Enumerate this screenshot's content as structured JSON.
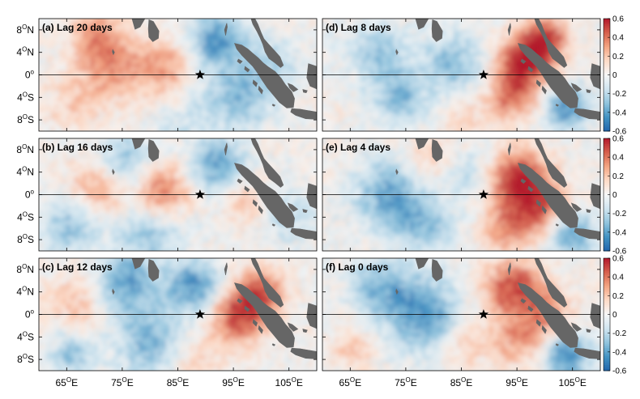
{
  "chart_data": {
    "type": "heatmap",
    "x_tick_labels": [
      {
        "deg": "65",
        "sup": "O",
        "hemi": "E",
        "value": 65
      },
      {
        "deg": "75",
        "sup": "O",
        "hemi": "E",
        "value": 75
      },
      {
        "deg": "85",
        "sup": "O",
        "hemi": "E",
        "value": 85
      },
      {
        "deg": "95",
        "sup": "O",
        "hemi": "E",
        "value": 95
      },
      {
        "deg": "105",
        "sup": "O",
        "hemi": "E",
        "value": 105
      }
    ],
    "y_tick_labels": [
      {
        "deg": "8",
        "sup": "O",
        "hemi": "N",
        "value": 8
      },
      {
        "deg": "4",
        "sup": "O",
        "hemi": "N",
        "value": 4
      },
      {
        "deg": "0",
        "sup": "o",
        "hemi": "",
        "value": 0
      },
      {
        "deg": "4",
        "sup": "O",
        "hemi": "S",
        "value": -4
      },
      {
        "deg": "8",
        "sup": "O",
        "hemi": "S",
        "value": -8
      }
    ],
    "xlim": [
      60,
      110
    ],
    "ylim": [
      -10,
      10
    ],
    "colorbar": {
      "range": [
        -0.6,
        0.6
      ],
      "ticks": [
        "0.6",
        "0.4",
        "0.2",
        "0",
        "-0.2",
        "-0.4",
        "-0.6"
      ],
      "colors": [
        "#b2182b",
        "#d6604d",
        "#f4a582",
        "#fddbc7",
        "#f7f7f7",
        "#d1e5f0",
        "#92c5de",
        "#4393c3",
        "#2166ac"
      ]
    },
    "star": {
      "lon": 89,
      "lat": 0
    },
    "panels": [
      {
        "id": "a",
        "label": "(a) Lag 20 days",
        "lag": 20
      },
      {
        "id": "b",
        "label": "(b) Lag 16 days",
        "lag": 16
      },
      {
        "id": "c",
        "label": "(c) Lag 12 days",
        "lag": 12
      },
      {
        "id": "d",
        "label": "(d) Lag 8 days",
        "lag": 8
      },
      {
        "id": "e",
        "label": "(e) Lag 4 days",
        "lag": 4
      },
      {
        "id": "f",
        "label": "(f) Lag 0 days",
        "lag": 0
      }
    ],
    "land_color": "#666666"
  }
}
